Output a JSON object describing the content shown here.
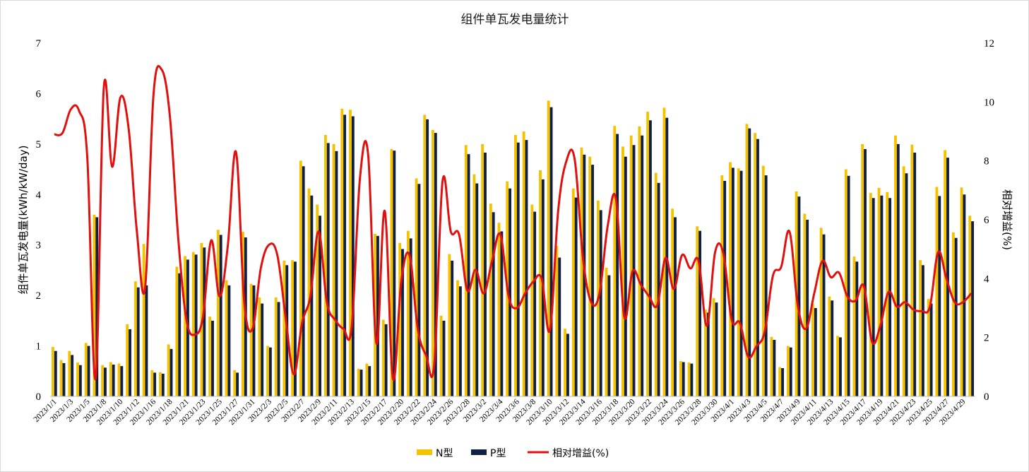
{
  "chart_data": {
    "type": "bar",
    "title": "组件单瓦发电量统计",
    "ylabel": "组件单瓦发电量(kWh/kW/day)",
    "y2label": "相对增益(%)",
    "ylim": [
      0,
      7
    ],
    "y2lim": [
      0,
      12
    ],
    "yticks": [
      "0",
      "1",
      "2",
      "3",
      "4",
      "5",
      "6",
      "7"
    ],
    "y2ticks": [
      "0",
      "2",
      "4",
      "6",
      "8",
      "10",
      "12"
    ],
    "grid": false,
    "legend_position": "bottom",
    "colors": {
      "n": "#f5c200",
      "p": "#0f1f45",
      "gain": "#e01010"
    },
    "categories": [
      "2023/1/1",
      "2023/1/2",
      "2023/1/3",
      "2023/1/4",
      "2023/1/5",
      "2023/1/6",
      "2023/1/8",
      "2023/1/9",
      "2023/1/10",
      "2023/1/11",
      "2023/1/12",
      "2023/1/15",
      "2023/1/16",
      "2023/1/17",
      "2023/1/18",
      "2023/1/20",
      "2023/1/21",
      "2023/1/22",
      "2023/1/23",
      "2023/1/24",
      "2023/1/25",
      "2023/1/26",
      "2023/1/27",
      "2023/1/30",
      "2023/1/31",
      "2023/2/1",
      "2023/2/3",
      "2023/2/4",
      "2023/2/5",
      "2023/2/6",
      "2023/2/7",
      "2023/2/8",
      "2023/2/9",
      "2023/2/10",
      "2023/2/11",
      "2023/2/12",
      "2023/2/13",
      "2023/2/14",
      "2023/2/15",
      "2023/2/16",
      "2023/2/17",
      "2023/2/18",
      "2023/2/20",
      "2023/2/21",
      "2023/2/22",
      "2023/2/23",
      "2023/2/24",
      "2023/2/25",
      "2023/2/26",
      "2023/2/27",
      "2023/2/28",
      "2023/3/1",
      "2023/3/2",
      "2023/3/3",
      "2023/3/4",
      "2023/3/5",
      "2023/3/6",
      "2023/3/7",
      "2023/3/8",
      "2023/3/9",
      "2023/3/10",
      "2023/3/11",
      "2023/3/12",
      "2023/3/13",
      "2023/3/14",
      "2023/3/15",
      "2023/3/16",
      "2023/3/17",
      "2023/3/18",
      "2023/3/19",
      "2023/3/20",
      "2023/3/21",
      "2023/3/22",
      "2023/3/23",
      "2023/3/24",
      "2023/3/25",
      "2023/3/26",
      "2023/3/27",
      "2023/3/28",
      "2023/3/29",
      "2023/3/30",
      "2023/3/31",
      "2023/4/1",
      "2023/4/2",
      "2023/4/3",
      "2023/4/4",
      "2023/4/5",
      "2023/4/6",
      "2023/4/7",
      "2023/4/8",
      "2023/4/9",
      "2023/4/10",
      "2023/4/11",
      "2023/4/12",
      "2023/4/13",
      "2023/4/14",
      "2023/4/15",
      "2023/4/16",
      "2023/4/17",
      "2023/4/18",
      "2023/4/19",
      "2023/4/20",
      "2023/4/21",
      "2023/4/22",
      "2023/4/23",
      "2023/4/24",
      "2023/4/25",
      "2023/4/26",
      "2023/4/27",
      "2023/4/28",
      "2023/4/29",
      "2023/4/30"
    ],
    "series": [
      {
        "name": "N型",
        "values": [
          0.98,
          0.72,
          0.9,
          0.67,
          1.06,
          3.6,
          0.62,
          0.68,
          0.65,
          1.43,
          2.28,
          3.02,
          0.52,
          0.48,
          1.03,
          2.57,
          2.78,
          2.86,
          3.04,
          1.58,
          3.3,
          2.3,
          0.52,
          3.26,
          2.23,
          1.96,
          1.0,
          1.96,
          2.69,
          2.7,
          4.67,
          4.12,
          3.8,
          5.18,
          5.0,
          5.7,
          5.68,
          0.55,
          0.65,
          3.22,
          1.52,
          4.9,
          3.04,
          3.28,
          4.32,
          5.58,
          5.28,
          1.6,
          2.82,
          2.3,
          4.98,
          4.4,
          5.0,
          3.82,
          3.44,
          4.26,
          5.18,
          5.25,
          3.8,
          4.48,
          5.86,
          2.98,
          1.34,
          4.12,
          4.93,
          4.75,
          3.88,
          2.55,
          5.36,
          4.95,
          5.17,
          5.35,
          5.64,
          4.43,
          5.72,
          3.72,
          0.7,
          0.67,
          3.37,
          1.72,
          1.95,
          4.38,
          4.64,
          4.52,
          5.4,
          5.22,
          4.57,
          1.18,
          0.58,
          1.0,
          4.06,
          3.62,
          1.84,
          3.34,
          1.98,
          1.2,
          4.5,
          2.77,
          5.0,
          4.03,
          4.13,
          4.05,
          5.17,
          4.56,
          4.99,
          2.7,
          1.93,
          4.15,
          4.88,
          3.25,
          4.14,
          3.58
        ]
      },
      {
        "name": "P型",
        "values": [
          0.9,
          0.66,
          0.82,
          0.62,
          1.0,
          3.55,
          0.57,
          0.63,
          0.6,
          1.33,
          2.16,
          2.2,
          0.47,
          0.45,
          0.94,
          2.44,
          2.71,
          2.81,
          2.95,
          1.5,
          3.2,
          2.2,
          0.47,
          3.15,
          2.2,
          1.84,
          0.97,
          1.87,
          2.6,
          2.67,
          4.56,
          3.98,
          3.58,
          5.02,
          4.86,
          5.58,
          5.55,
          0.53,
          0.6,
          3.18,
          1.43,
          4.87,
          2.92,
          3.13,
          4.21,
          5.49,
          5.22,
          1.5,
          2.69,
          2.18,
          4.8,
          4.22,
          4.83,
          3.65,
          3.27,
          4.12,
          5.03,
          5.08,
          3.66,
          4.3,
          5.73,
          2.75,
          1.24,
          3.94,
          4.79,
          4.59,
          3.69,
          2.4,
          5.2,
          4.75,
          4.98,
          5.17,
          5.47,
          4.23,
          5.52,
          3.55,
          0.68,
          0.65,
          3.28,
          1.66,
          1.86,
          4.27,
          4.53,
          4.47,
          5.31,
          5.1,
          4.38,
          1.12,
          0.56,
          0.97,
          3.96,
          3.5,
          1.75,
          3.21,
          1.9,
          1.17,
          4.37,
          2.67,
          4.9,
          3.93,
          3.98,
          3.93,
          5.0,
          4.42,
          4.83,
          2.6,
          1.84,
          3.97,
          4.73,
          3.14,
          4.0,
          3.47
        ]
      },
      {
        "name": "相对增益(%)",
        "axis": "right",
        "type": "line",
        "values": [
          8.9,
          8.95,
          9.75,
          9.7,
          8.1,
          0.6,
          10.5,
          7.8,
          10.15,
          9.1,
          5.6,
          3.7,
          10.2,
          11.1,
          9.5,
          5.4,
          2.6,
          2.1,
          2.7,
          5.3,
          3.4,
          5.1,
          8.3,
          3.2,
          2.3,
          4.35,
          5.15,
          4.8,
          2.7,
          0.75,
          2.5,
          3.4,
          5.6,
          3.2,
          2.6,
          2.3,
          2.35,
          7.4,
          8.2,
          1.8,
          6.3,
          0.6,
          3.9,
          4.8,
          2.3,
          1.4,
          1.1,
          7.3,
          5.6,
          5.5,
          3.6,
          4.3,
          3.5,
          4.6,
          5.5,
          3.4,
          3.0,
          3.5,
          3.9,
          4.0,
          2.25,
          6.3,
          8.0,
          8.05,
          4.7,
          3.2,
          3.5,
          5.8,
          6.7,
          2.7,
          4.25,
          3.8,
          3.4,
          3.1,
          4.7,
          3.65,
          4.8,
          4.35,
          4.6,
          2.4,
          4.9,
          4.85,
          2.6,
          2.5,
          1.35,
          1.7,
          2.2,
          4.1,
          4.4,
          5.6,
          3.1,
          2.3,
          3.5,
          4.6,
          4.05,
          4.2,
          3.4,
          3.25,
          3.75,
          1.85,
          2.4,
          3.55,
          3.05,
          3.2,
          2.95,
          2.9,
          3.05,
          4.9,
          4.0,
          3.2,
          3.2,
          3.5
        ]
      }
    ]
  }
}
